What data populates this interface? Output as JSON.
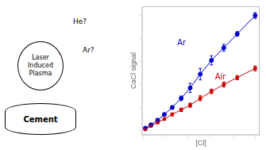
{
  "chart_data": {
    "type": "scatter",
    "xlabel": "[Cl]",
    "ylabel": "CaCl signal",
    "x": [
      0.02,
      0.07,
      0.13,
      0.19,
      0.26,
      0.34,
      0.42,
      0.51,
      0.61,
      0.72,
      0.84,
      1.0
    ],
    "series": [
      {
        "name": "Ar",
        "color": "#0000cc",
        "marker": "circle",
        "line_style": "solid",
        "values": [
          0.02,
          0.05,
          0.09,
          0.14,
          0.2,
          0.28,
          0.37,
          0.49,
          0.61,
          0.72,
          0.84,
          1.0
        ],
        "errors": [
          0.008,
          0.008,
          0.01,
          0.01,
          0.015,
          0.02,
          0.04,
          0.05,
          0.04,
          0.03,
          0.02,
          0.025
        ]
      },
      {
        "name": "Air",
        "color": "#cc0000",
        "marker": "square",
        "line_style": "solid",
        "values": [
          0.01,
          0.04,
          0.07,
          0.1,
          0.14,
          0.18,
          0.22,
          0.28,
          0.34,
          0.4,
          0.46,
          0.54
        ],
        "errors": [
          0.005,
          0.008,
          0.01,
          0.01,
          0.012,
          0.015,
          0.018,
          0.022,
          0.02,
          0.022,
          0.018,
          0.022
        ]
      }
    ],
    "xlim": [
      -0.01,
      1.04
    ],
    "ylim": [
      -0.04,
      1.08
    ],
    "xticks": [
      0,
      0.2,
      0.4,
      0.6,
      0.8,
      1.0
    ],
    "yticks": [
      0,
      0.2,
      0.4,
      0.6,
      0.8,
      1.0
    ],
    "tick_labels": false,
    "grid": false,
    "annotations": [
      "Laser",
      "Induced",
      "Plasma",
      "Cement",
      "He?",
      "Ar?"
    ]
  }
}
